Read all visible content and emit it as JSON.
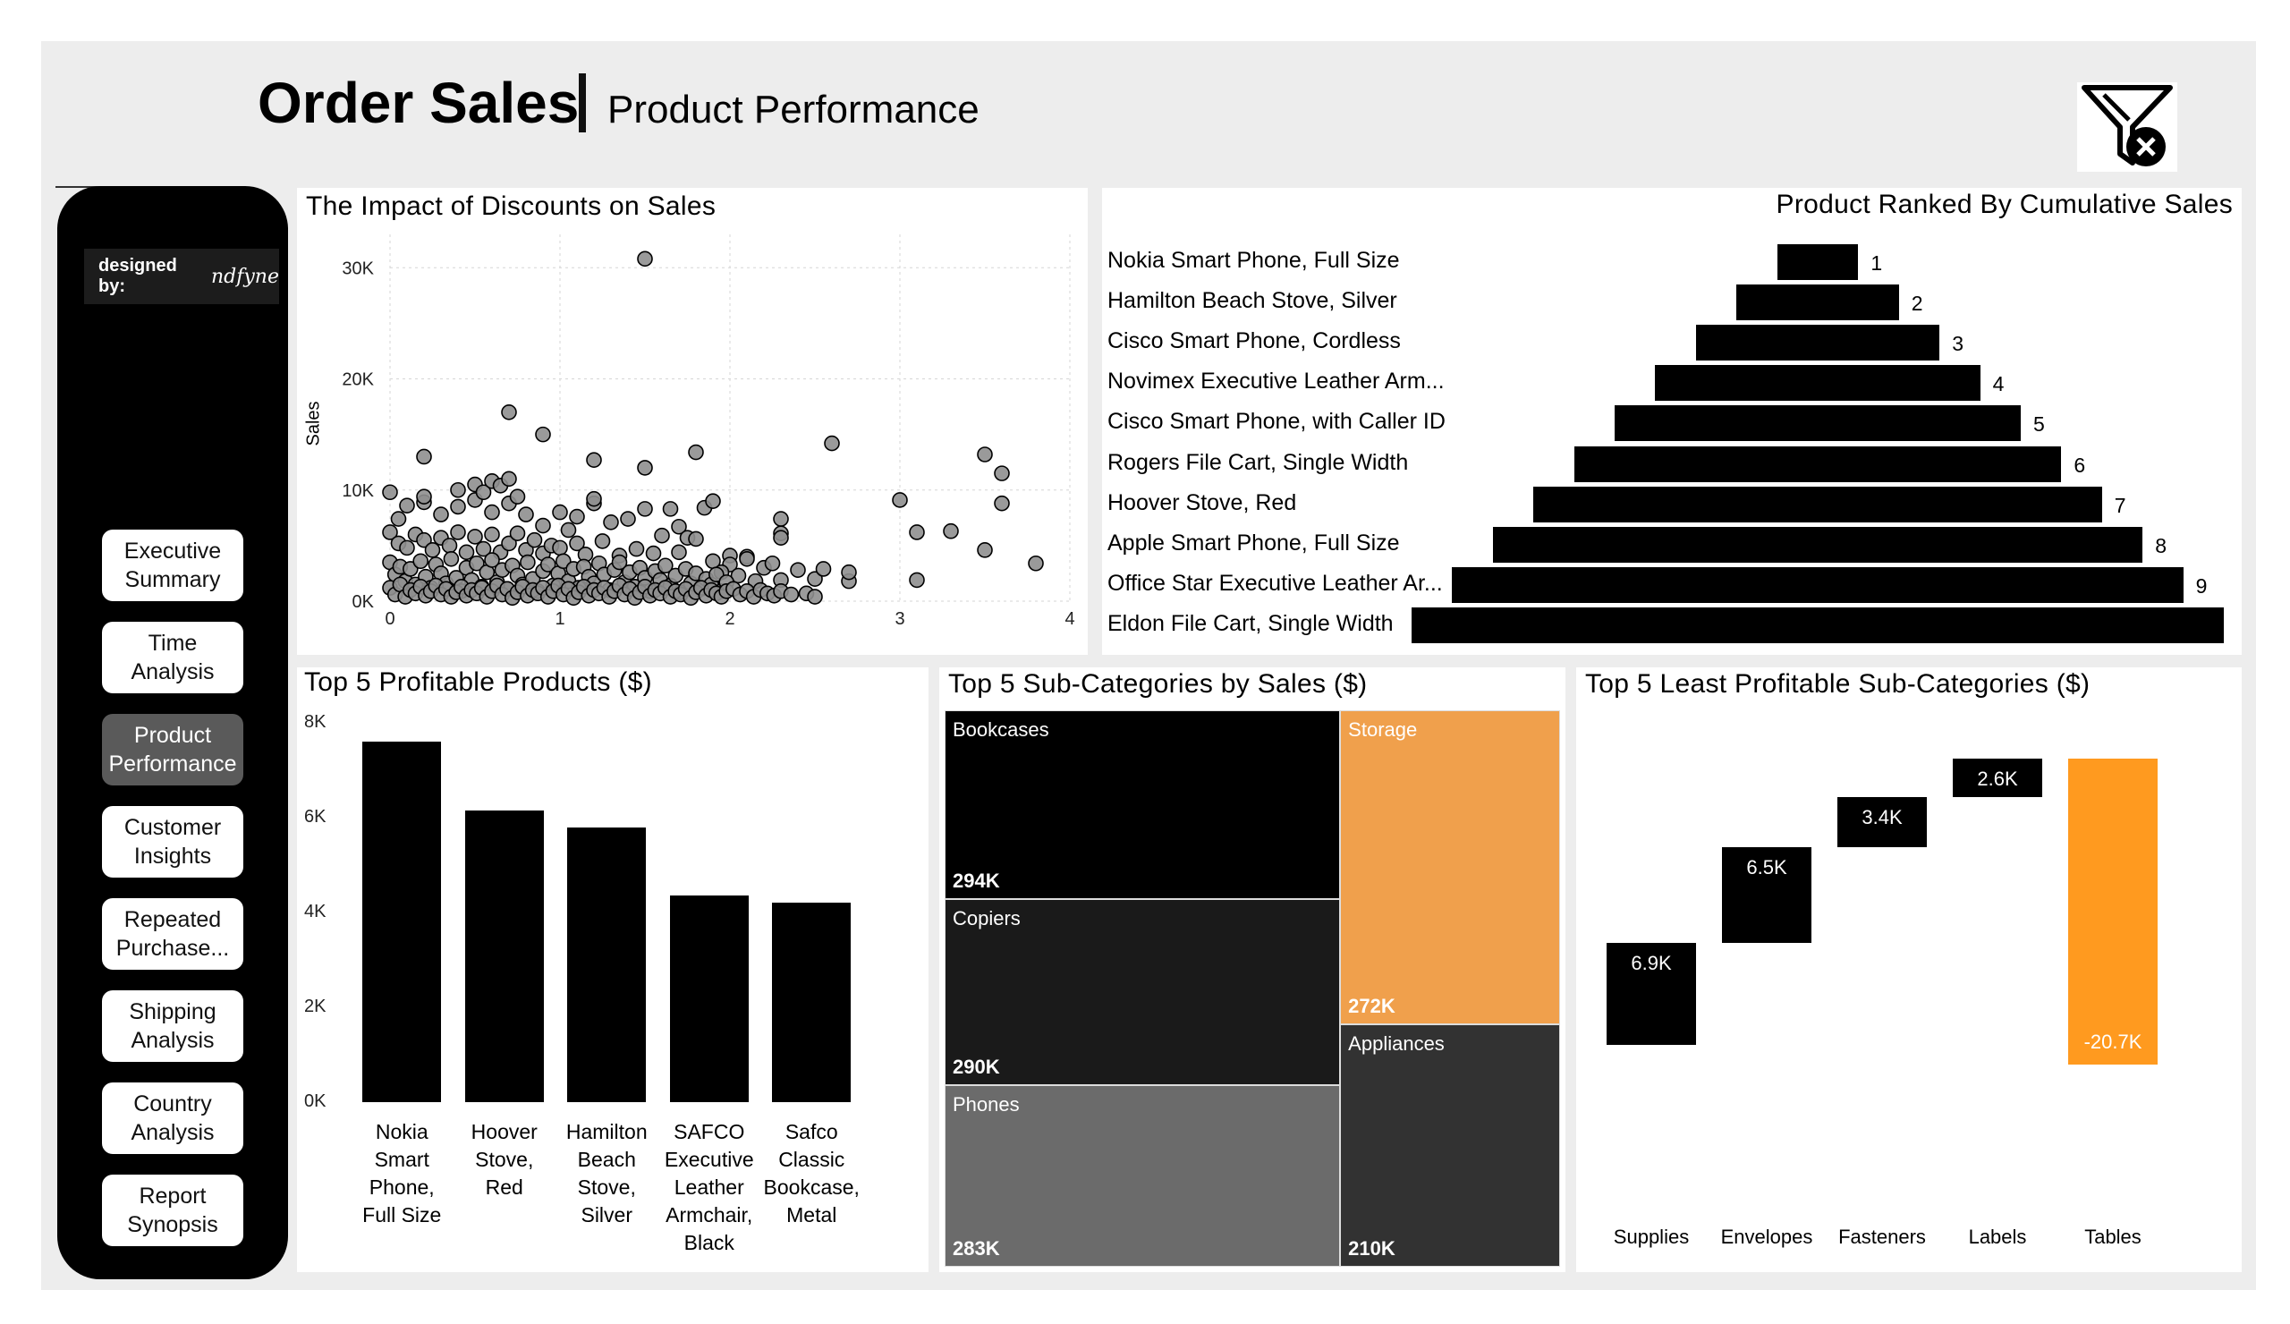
{
  "header": {
    "title": "Order Sales",
    "subtitle": "Product Performance",
    "clear_filters_icon": "filter-clear-icon"
  },
  "sidebar": {
    "designed_by_label": "designed by:",
    "designed_by_name": "ndfyne",
    "nav": [
      {
        "label": "Executive Summary",
        "active": false
      },
      {
        "label": "Time Analysis",
        "active": false
      },
      {
        "label": "Product Performance",
        "active": true
      },
      {
        "label": "Customer Insights",
        "active": false
      },
      {
        "label": "Repeated Purchase...",
        "active": false
      },
      {
        "label": "Shipping Analysis",
        "active": false
      },
      {
        "label": "Country Analysis",
        "active": false
      },
      {
        "label": "Report Synopsis",
        "active": false
      }
    ]
  },
  "colors": {
    "accent": "#f0a04c",
    "accent_strong": "#ff9a1f",
    "bar": "#000000",
    "background": "#ededed"
  },
  "chart_data": [
    {
      "type": "scatter",
      "title": "The Impact of Discounts on Sales",
      "ylabel": "Sales",
      "xlim": [
        0,
        4
      ],
      "ylim": [
        0,
        33000
      ],
      "xticks": [
        "0",
        "1",
        "2",
        "3",
        "4"
      ],
      "yticks": [
        "0K",
        "10K",
        "20K",
        "30K"
      ],
      "grid": true,
      "points": [
        [
          1.5,
          30800
        ],
        [
          0.7,
          17000
        ],
        [
          0.9,
          15000
        ],
        [
          0.2,
          13000
        ],
        [
          1.2,
          12700
        ],
        [
          1.5,
          12000
        ],
        [
          1.8,
          13400
        ],
        [
          2.6,
          14200
        ],
        [
          3.5,
          13200
        ],
        [
          3.6,
          11500
        ],
        [
          3.6,
          8800
        ],
        [
          3.0,
          9100
        ],
        [
          3.1,
          6200
        ],
        [
          3.3,
          6300
        ],
        [
          3.5,
          4600
        ],
        [
          3.8,
          3400
        ],
        [
          3.1,
          1900
        ],
        [
          2.7,
          1800
        ],
        [
          2.7,
          2600
        ],
        [
          0.0,
          9800
        ],
        [
          0.05,
          7400
        ],
        [
          0.1,
          8600
        ],
        [
          0.2,
          8900
        ],
        [
          0.2,
          9400
        ],
        [
          0.3,
          7800
        ],
        [
          0.4,
          10000
        ],
        [
          0.4,
          8500
        ],
        [
          0.5,
          10500
        ],
        [
          0.5,
          9100
        ],
        [
          0.55,
          9800
        ],
        [
          0.6,
          10800
        ],
        [
          0.6,
          8000
        ],
        [
          0.65,
          10400
        ],
        [
          0.7,
          11000
        ],
        [
          0.7,
          8800
        ],
        [
          0.75,
          9400
        ],
        [
          0.8,
          7800
        ],
        [
          0.9,
          6800
        ],
        [
          1.0,
          8000
        ],
        [
          1.05,
          6400
        ],
        [
          1.1,
          7600
        ],
        [
          1.2,
          8800
        ],
        [
          1.2,
          9200
        ],
        [
          1.3,
          7100
        ],
        [
          1.4,
          7400
        ],
        [
          1.5,
          8300
        ],
        [
          1.6,
          5900
        ],
        [
          1.65,
          8300
        ],
        [
          1.7,
          6700
        ],
        [
          1.75,
          5700
        ],
        [
          1.8,
          5600
        ],
        [
          1.85,
          8400
        ],
        [
          1.9,
          9000
        ],
        [
          2.0,
          4100
        ],
        [
          2.1,
          4000
        ],
        [
          2.3,
          7400
        ],
        [
          2.3,
          6100
        ],
        [
          2.3,
          5700
        ],
        [
          0.0,
          6200
        ],
        [
          0.05,
          5200
        ],
        [
          0.1,
          4800
        ],
        [
          0.15,
          6000
        ],
        [
          0.2,
          5500
        ],
        [
          0.25,
          4600
        ],
        [
          0.3,
          5700
        ],
        [
          0.35,
          5000
        ],
        [
          0.4,
          6200
        ],
        [
          0.45,
          4400
        ],
        [
          0.5,
          5800
        ],
        [
          0.55,
          4700
        ],
        [
          0.6,
          6000
        ],
        [
          0.65,
          4400
        ],
        [
          0.7,
          5200
        ],
        [
          0.75,
          6100
        ],
        [
          0.8,
          4600
        ],
        [
          0.85,
          5500
        ],
        [
          0.9,
          4300
        ],
        [
          0.95,
          5000
        ],
        [
          1.0,
          4800
        ],
        [
          1.1,
          5200
        ],
        [
          1.15,
          4200
        ],
        [
          1.25,
          5400
        ],
        [
          1.35,
          4100
        ],
        [
          1.45,
          4700
        ],
        [
          1.55,
          4300
        ],
        [
          1.7,
          4400
        ],
        [
          1.9,
          3600
        ],
        [
          2.0,
          3300
        ],
        [
          2.1,
          3800
        ],
        [
          2.2,
          3000
        ],
        [
          2.25,
          3400
        ],
        [
          2.4,
          2800
        ],
        [
          2.5,
          2000
        ],
        [
          2.55,
          2900
        ],
        [
          2.3,
          1900
        ],
        [
          2.15,
          1800
        ],
        [
          2.05,
          2300
        ],
        [
          1.95,
          2600
        ],
        [
          0.0,
          3500
        ],
        [
          0.03,
          2400
        ],
        [
          0.06,
          3100
        ],
        [
          0.09,
          1800
        ],
        [
          0.12,
          2900
        ],
        [
          0.15,
          1500
        ],
        [
          0.18,
          3600
        ],
        [
          0.21,
          2200
        ],
        [
          0.24,
          1200
        ],
        [
          0.27,
          3300
        ],
        [
          0.3,
          2500
        ],
        [
          0.33,
          1600
        ],
        [
          0.36,
          3800
        ],
        [
          0.39,
          2100
        ],
        [
          0.42,
          900
        ],
        [
          0.45,
          3000
        ],
        [
          0.48,
          1900
        ],
        [
          0.51,
          3400
        ],
        [
          0.54,
          1300
        ],
        [
          0.57,
          2600
        ],
        [
          0.6,
          3700
        ],
        [
          0.63,
          1700
        ],
        [
          0.66,
          2800
        ],
        [
          0.69,
          1100
        ],
        [
          0.72,
          3200
        ],
        [
          0.75,
          2300
        ],
        [
          0.78,
          1500
        ],
        [
          0.81,
          3500
        ],
        [
          0.84,
          2000
        ],
        [
          0.87,
          900
        ],
        [
          0.9,
          2700
        ],
        [
          0.93,
          3300
        ],
        [
          0.96,
          1400
        ],
        [
          0.99,
          2500
        ],
        [
          1.02,
          3600
        ],
        [
          1.05,
          1800
        ],
        [
          1.08,
          2900
        ],
        [
          1.11,
          1200
        ],
        [
          1.14,
          3100
        ],
        [
          1.17,
          2200
        ],
        [
          1.2,
          1600
        ],
        [
          1.23,
          3400
        ],
        [
          1.26,
          2400
        ],
        [
          1.29,
          1000
        ],
        [
          1.32,
          2800
        ],
        [
          1.35,
          3500
        ],
        [
          1.38,
          1700
        ],
        [
          1.41,
          2600
        ],
        [
          1.44,
          1300
        ],
        [
          1.47,
          3000
        ],
        [
          1.5,
          2100
        ],
        [
          1.53,
          900
        ],
        [
          1.56,
          2700
        ],
        [
          1.59,
          1900
        ],
        [
          1.62,
          3200
        ],
        [
          1.65,
          1400
        ],
        [
          1.68,
          2300
        ],
        [
          1.71,
          800
        ],
        [
          1.74,
          2900
        ],
        [
          1.77,
          1600
        ],
        [
          1.8,
          2500
        ],
        [
          1.83,
          1100
        ],
        [
          1.86,
          2000
        ],
        [
          1.89,
          1500
        ],
        [
          1.92,
          2400
        ],
        [
          1.95,
          900
        ],
        [
          1.98,
          1700
        ],
        [
          0.0,
          1200
        ],
        [
          0.03,
          600
        ],
        [
          0.06,
          1500
        ],
        [
          0.09,
          400
        ],
        [
          0.12,
          1000
        ],
        [
          0.15,
          700
        ],
        [
          0.18,
          1300
        ],
        [
          0.21,
          500
        ],
        [
          0.24,
          900
        ],
        [
          0.27,
          1400
        ],
        [
          0.3,
          600
        ],
        [
          0.33,
          1100
        ],
        [
          0.36,
          400
        ],
        [
          0.39,
          800
        ],
        [
          0.42,
          1300
        ],
        [
          0.45,
          500
        ],
        [
          0.48,
          1000
        ],
        [
          0.51,
          700
        ],
        [
          0.54,
          1200
        ],
        [
          0.57,
          400
        ],
        [
          0.6,
          900
        ],
        [
          0.63,
          1400
        ],
        [
          0.66,
          600
        ],
        [
          0.69,
          1100
        ],
        [
          0.72,
          300
        ],
        [
          0.75,
          800
        ],
        [
          0.78,
          1300
        ],
        [
          0.81,
          500
        ],
        [
          0.84,
          1000
        ],
        [
          0.87,
          700
        ],
        [
          0.9,
          1200
        ],
        [
          0.93,
          400
        ],
        [
          0.96,
          900
        ],
        [
          0.99,
          1400
        ],
        [
          1.02,
          600
        ],
        [
          1.05,
          1100
        ],
        [
          1.08,
          300
        ],
        [
          1.11,
          800
        ],
        [
          1.14,
          1300
        ],
        [
          1.17,
          500
        ],
        [
          1.2,
          1000
        ],
        [
          1.23,
          700
        ],
        [
          1.26,
          1200
        ],
        [
          1.29,
          400
        ],
        [
          1.32,
          900
        ],
        [
          1.35,
          1400
        ],
        [
          1.38,
          600
        ],
        [
          1.41,
          1100
        ],
        [
          1.44,
          300
        ],
        [
          1.47,
          800
        ],
        [
          1.5,
          1300
        ],
        [
          1.53,
          500
        ],
        [
          1.56,
          1000
        ],
        [
          1.59,
          700
        ],
        [
          1.62,
          1200
        ],
        [
          1.65,
          400
        ],
        [
          1.68,
          900
        ],
        [
          1.71,
          600
        ],
        [
          1.74,
          1100
        ],
        [
          1.77,
          300
        ],
        [
          1.8,
          800
        ],
        [
          1.83,
          1200
        ],
        [
          1.86,
          500
        ],
        [
          1.89,
          1000
        ],
        [
          1.92,
          700
        ],
        [
          1.95,
          400
        ],
        [
          1.98,
          900
        ],
        [
          2.02,
          1100
        ],
        [
          2.06,
          600
        ],
        [
          2.1,
          900
        ],
        [
          2.14,
          400
        ],
        [
          2.18,
          1000
        ],
        [
          2.22,
          700
        ],
        [
          2.26,
          500
        ],
        [
          2.3,
          900
        ],
        [
          2.36,
          600
        ],
        [
          2.45,
          700
        ],
        [
          2.5,
          400
        ]
      ]
    },
    {
      "type": "bar",
      "orientation": "horizontal-centered",
      "title": "Product Ranked By Cumulative Sales",
      "categories": [
        "Nokia Smart Phone, Full Size",
        "Hamilton Beach Stove, Silver",
        "Cisco Smart Phone, Cordless",
        "Novimex Executive Leather Arm...",
        "Cisco Smart Phone, with Caller ID",
        "Rogers File Cart, Single Width",
        "Hoover Stove, Red",
        "Apple Smart Phone, Full Size",
        "Office Star Executive Leather Ar...",
        "Eldon File Cart, Single Width"
      ],
      "values": [
        1,
        2,
        3,
        4,
        5,
        6,
        7,
        8,
        9,
        10
      ],
      "data_labels": [
        "1",
        "2",
        "3",
        "4",
        "5",
        "6",
        "7",
        "8",
        "9",
        ""
      ]
    },
    {
      "type": "bar",
      "title": "Top 5 Profitable Products ($)",
      "categories": [
        "Nokia Smart Phone, Full Size",
        "Hoover Stove, Red",
        "Hamilton Beach Stove, Silver",
        "SAFCO Executive Leather Armchair, Black",
        "Safco Classic Bookcase, Metal"
      ],
      "category_lines": [
        [
          "Nokia",
          "Smart",
          "Phone,",
          "Full Size"
        ],
        [
          "Hoover",
          "Stove,",
          "Red"
        ],
        [
          "Hamilton",
          "Beach",
          "Stove,",
          "Silver"
        ],
        [
          "SAFCO",
          "Executive",
          "Leather",
          "Armchair,",
          "Black"
        ],
        [
          "Safco",
          "Classic",
          "Bookcase,",
          "Metal"
        ]
      ],
      "values": [
        7600,
        6150,
        5800,
        4350,
        4200
      ],
      "ylim": [
        0,
        8000
      ],
      "yticks": [
        "0K",
        "2K",
        "4K",
        "6K",
        "8K"
      ]
    },
    {
      "type": "treemap",
      "title": "Top 5 Sub-Categories by Sales ($)",
      "items": [
        {
          "name": "Bookcases",
          "label": "294K",
          "value": 294,
          "color": "#000000"
        },
        {
          "name": "Copiers",
          "label": "290K",
          "value": 290,
          "color": "#1a1a1a"
        },
        {
          "name": "Phones",
          "label": "283K",
          "value": 283,
          "color": "#6b6b6b"
        },
        {
          "name": "Storage",
          "label": "272K",
          "value": 272,
          "color": "#f0a04c"
        },
        {
          "name": "Appliances",
          "label": "210K",
          "value": 210,
          "color": "#323232"
        }
      ]
    },
    {
      "type": "waterfall",
      "title": "Top 5 Least Profitable Sub-Categories ($)",
      "categories": [
        "Supplies",
        "Envelopes",
        "Fasteners",
        "Labels",
        "Tables"
      ],
      "values": [
        6.9,
        6.5,
        3.4,
        2.6,
        -20.7
      ],
      "labels": [
        "6.9K",
        "6.5K",
        "3.4K",
        "2.6K",
        "-20.7K"
      ],
      "colors": [
        "#000000",
        "#000000",
        "#000000",
        "#000000",
        "#ff9a1f"
      ]
    }
  ]
}
